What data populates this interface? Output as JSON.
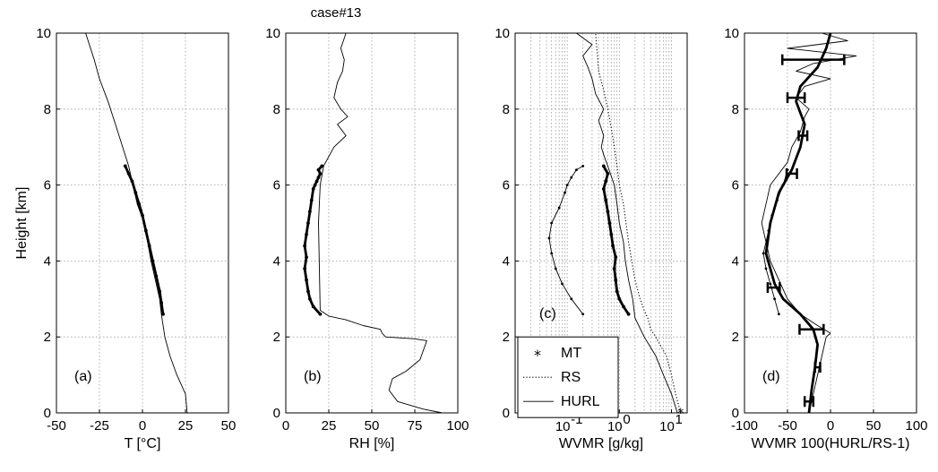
{
  "figure_title": "case#13",
  "chart_data": [
    {
      "type": "line",
      "panel_label": "(a)",
      "xlabel": "T [°C]",
      "ylabel": "Height [km]",
      "xlim": [
        -50,
        50
      ],
      "ylim": [
        0,
        10
      ],
      "xticks": [
        -50,
        -25,
        0,
        25,
        50
      ],
      "xtick_labels": [
        "-50",
        "-25",
        "0",
        "25",
        "50"
      ],
      "yticks": [
        0,
        2,
        4,
        6,
        8,
        10
      ],
      "ytick_labels": [
        "0",
        "2",
        "4",
        "6",
        "8",
        "10"
      ],
      "grid": true,
      "series": [
        {
          "style": "thin",
          "x": [
            26,
            25,
            20,
            16,
            13,
            11,
            10,
            5,
            1,
            -3,
            -8,
            -15,
            -20,
            -25,
            -28,
            -33
          ],
          "y": [
            0,
            0.5,
            1.0,
            1.5,
            2.0,
            2.6,
            3.0,
            4.0,
            5.0,
            5.5,
            6.5,
            7.5,
            8.2,
            8.8,
            9.3,
            10
          ]
        },
        {
          "style": "bold-dots",
          "x": [
            12,
            11,
            10,
            8,
            6,
            4,
            2,
            0,
            -2,
            -4,
            -6,
            -8,
            -10
          ],
          "y": [
            2.6,
            2.9,
            3.2,
            3.6,
            4.0,
            4.4,
            4.8,
            5.2,
            5.5,
            5.8,
            6.1,
            6.3,
            6.5
          ]
        }
      ]
    },
    {
      "type": "line",
      "panel_label": "(b)",
      "xlabel": "RH [%]",
      "xlim": [
        0,
        100
      ],
      "ylim": [
        0,
        10
      ],
      "xticks": [
        0,
        25,
        50,
        75,
        100
      ],
      "xtick_labels": [
        "0",
        "25",
        "50",
        "75",
        "100"
      ],
      "yticks": [
        0,
        2,
        4,
        6,
        8,
        10
      ],
      "ytick_labels": [
        "0",
        "2",
        "4",
        "6",
        "8",
        "10"
      ],
      "grid": true,
      "series": [
        {
          "style": "thin",
          "x": [
            91,
            80,
            65,
            60,
            62,
            70,
            78,
            82,
            75,
            58,
            56,
            55,
            45,
            35,
            25,
            20,
            19,
            20,
            22,
            28,
            35,
            30,
            36,
            32,
            28,
            30,
            33,
            34,
            32,
            35
          ],
          "y": [
            0,
            0.1,
            0.3,
            0.6,
            0.9,
            1.1,
            1.4,
            1.9,
            1.95,
            2.0,
            2.1,
            2.2,
            2.3,
            2.45,
            2.55,
            2.7,
            5.0,
            6.0,
            6.5,
            7.0,
            7.3,
            7.6,
            7.8,
            8.0,
            8.3,
            8.7,
            9.0,
            9.3,
            9.6,
            10
          ]
        },
        {
          "style": "bold-dots",
          "x": [
            20,
            16,
            14,
            13,
            12,
            11,
            12,
            11,
            12,
            13,
            14,
            15,
            16,
            17,
            18,
            19,
            20,
            19,
            21
          ],
          "y": [
            2.6,
            2.8,
            3.0,
            3.2,
            3.5,
            3.8,
            4.1,
            4.4,
            4.7,
            5.0,
            5.3,
            5.6,
            5.9,
            6.0,
            6.1,
            6.2,
            6.3,
            6.4,
            6.5
          ]
        }
      ]
    },
    {
      "type": "line",
      "panel_label": "(c)",
      "xlabel": "WVMR [g/kg]",
      "xscale": "log",
      "xlim": [
        0.01,
        20
      ],
      "ylim": [
        0,
        10
      ],
      "xticks": [
        0.1,
        1,
        10
      ],
      "xtick_labels": [
        "10",
        "10",
        "10"
      ],
      "xtick_exponents": [
        "-1",
        "0",
        "1"
      ],
      "yticks": [
        0,
        2,
        4,
        6,
        8,
        10
      ],
      "ytick_labels": [
        "0",
        "2",
        "4",
        "6",
        "8",
        "10"
      ],
      "grid": true,
      "legend_position": "bottom-left",
      "legend": [
        "MT",
        "RS",
        "HURL"
      ],
      "series": [
        {
          "name": "RS",
          "style": "dotted",
          "x": [
            15,
            12,
            10,
            8,
            6,
            5,
            4,
            3.5,
            3,
            2.5,
            2,
            1.5,
            1.2,
            1.0,
            0.9,
            0.8,
            0.7,
            0.6,
            0.5,
            0.4,
            0.35
          ],
          "y": [
            0,
            0.5,
            1.0,
            1.5,
            1.8,
            2.0,
            2.2,
            2.5,
            2.7,
            3.0,
            3.5,
            4.5,
            5.5,
            6.0,
            6.5,
            7.0,
            7.5,
            8.0,
            8.5,
            9.0,
            10
          ]
        },
        {
          "name": "HURL",
          "style": "thin",
          "x": [
            13,
            10,
            7,
            5,
            3,
            2,
            1.8,
            1.5,
            1.3,
            1.2,
            1.0,
            0.9,
            0.8,
            0.6,
            0.5,
            0.45,
            0.5,
            0.4,
            0.5,
            0.35,
            0.3,
            0.25,
            0.2,
            0.3,
            0.15
          ],
          "y": [
            0,
            0.5,
            1.0,
            1.5,
            2.0,
            2.5,
            3.0,
            3.5,
            4.0,
            4.5,
            5.0,
            5.5,
            6.0,
            6.5,
            6.8,
            7.0,
            7.3,
            7.7,
            8.0,
            8.4,
            8.8,
            9.1,
            9.4,
            9.7,
            10
          ]
        },
        {
          "name": "MT",
          "style": "thin-dots",
          "x": [
            0.2,
            0.12,
            0.08,
            0.06,
            0.05,
            0.045,
            0.05,
            0.07,
            0.09,
            0.1,
            0.12,
            0.15,
            0.2
          ],
          "y": [
            2.6,
            3.0,
            3.4,
            3.8,
            4.2,
            4.6,
            5.0,
            5.4,
            5.8,
            6.0,
            6.2,
            6.4,
            6.5
          ]
        },
        {
          "style": "bold-dots",
          "x": [
            1.5,
            1.2,
            1.0,
            0.9,
            0.85,
            0.8,
            0.85,
            0.75,
            0.7,
            0.65,
            0.6,
            0.55,
            0.5,
            0.55,
            0.6,
            0.5
          ],
          "y": [
            2.6,
            2.8,
            3.0,
            3.2,
            3.5,
            3.8,
            4.1,
            4.4,
            4.7,
            5.0,
            5.3,
            5.6,
            5.9,
            6.1,
            6.3,
            6.5
          ]
        },
        {
          "name": "MT",
          "style": "star",
          "x": [
            15
          ],
          "y": [
            0
          ]
        }
      ]
    },
    {
      "type": "line",
      "panel_label": "(d)",
      "xlabel": "WVMR 100(HURL/RS-1)",
      "xlim": [
        -100,
        100
      ],
      "ylim": [
        0,
        10
      ],
      "xticks": [
        -100,
        -50,
        0,
        50,
        100
      ],
      "xtick_labels": [
        "-100",
        "-50",
        "0",
        "50",
        "100"
      ],
      "yticks": [
        0,
        2,
        4,
        6,
        8,
        10
      ],
      "ytick_labels": [
        "0",
        "2",
        "4",
        "6",
        "8",
        "10"
      ],
      "grid": true,
      "series": [
        {
          "style": "thin",
          "x": [
            -25,
            -20,
            -15,
            -10,
            -5,
            0,
            -15,
            -35,
            -50,
            -60,
            -70,
            -75,
            -80,
            -75,
            -70,
            -60,
            -50,
            -45,
            -35,
            -30,
            -25,
            -40,
            -30,
            0,
            -40,
            -20,
            30,
            -50,
            20,
            -10
          ],
          "y": [
            0,
            0.5,
            1.0,
            1.5,
            2.0,
            2.1,
            2.3,
            2.6,
            3.0,
            3.5,
            4.0,
            4.5,
            5.0,
            5.5,
            6.0,
            6.3,
            6.6,
            7.0,
            7.4,
            7.8,
            8.0,
            8.3,
            8.6,
            8.8,
            9.0,
            9.2,
            9.4,
            9.6,
            9.8,
            10
          ]
        },
        {
          "style": "bold",
          "x": [
            -25,
            -22,
            -18,
            -15,
            -20,
            -35,
            -55,
            -65,
            -75,
            -70,
            -60,
            -45,
            -35,
            -30,
            -40,
            -35,
            -15,
            -5,
            0
          ],
          "y": [
            0,
            0.6,
            1.2,
            1.8,
            2.2,
            2.6,
            3.0,
            3.4,
            4.2,
            5.0,
            5.8,
            6.4,
            7.0,
            7.6,
            8.2,
            8.6,
            9.1,
            9.6,
            10
          ]
        },
        {
          "style": "thin-dots",
          "x": [
            -60,
            -65,
            -70,
            -75,
            -78,
            -72,
            -68,
            -62,
            -55,
            -50
          ],
          "y": [
            2.6,
            3.0,
            3.4,
            3.8,
            4.2,
            4.8,
            5.2,
            5.6,
            6.0,
            6.4
          ]
        }
      ],
      "errorbars": [
        {
          "x": -25,
          "y": 0.3,
          "xerr": 5
        },
        {
          "x": -15,
          "y": 1.2,
          "xerr": 3
        },
        {
          "x": -22,
          "y": 2.2,
          "xerr": 14
        },
        {
          "x": -66,
          "y": 3.3,
          "xerr": 7
        },
        {
          "x": -45,
          "y": 6.3,
          "xerr": 6
        },
        {
          "x": -32,
          "y": 7.3,
          "xerr": 5
        },
        {
          "x": -40,
          "y": 8.3,
          "xerr": 10
        },
        {
          "x": -20,
          "y": 9.3,
          "xerr": 36
        }
      ]
    }
  ]
}
